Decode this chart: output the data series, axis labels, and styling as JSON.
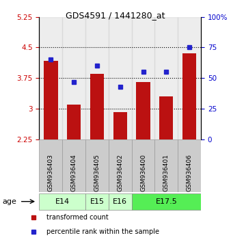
{
  "title": "GDS4591 / 1441280_at",
  "samples": [
    "GSM936403",
    "GSM936404",
    "GSM936405",
    "GSM936402",
    "GSM936400",
    "GSM936401",
    "GSM936406"
  ],
  "bar_values": [
    4.18,
    3.1,
    3.85,
    2.92,
    3.65,
    3.3,
    4.35
  ],
  "dot_values_right": [
    65,
    47,
    60,
    43,
    55,
    55,
    75
  ],
  "ylim_left": [
    2.25,
    5.25
  ],
  "ylim_right": [
    0,
    100
  ],
  "yticks_left": [
    2.25,
    3.0,
    3.75,
    4.5,
    5.25
  ],
  "yticks_right": [
    0,
    25,
    50,
    75,
    100
  ],
  "ytick_labels_left": [
    "2.25",
    "3",
    "3.75",
    "4.5",
    "5.25"
  ],
  "ytick_labels_right": [
    "0",
    "25",
    "50",
    "75",
    "100%"
  ],
  "bar_color": "#bb1111",
  "dot_color": "#2222cc",
  "age_groups": [
    {
      "label": "E14",
      "start": 0,
      "end": 1,
      "color": "#ccffcc"
    },
    {
      "label": "E15",
      "start": 2,
      "end": 2,
      "color": "#ccffcc"
    },
    {
      "label": "E16",
      "start": 3,
      "end": 3,
      "color": "#ccffcc"
    },
    {
      "label": "E17.5",
      "start": 4,
      "end": 6,
      "color": "#55ee55"
    }
  ],
  "sample_bg": "#cccccc",
  "legend_items": [
    {
      "label": "transformed count",
      "color": "#bb1111"
    },
    {
      "label": "percentile rank within the sample",
      "color": "#2222cc"
    }
  ]
}
